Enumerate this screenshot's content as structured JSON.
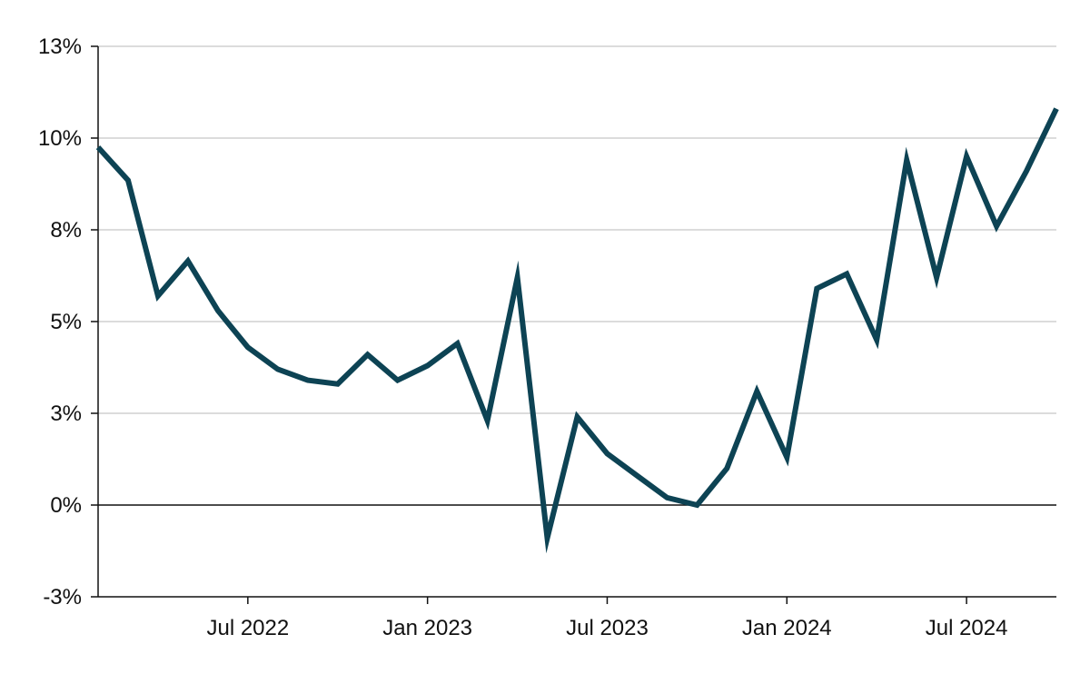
{
  "chart_data": {
    "type": "line",
    "title": "",
    "xlabel": "",
    "ylabel": "",
    "x": [
      "2022-02",
      "2022-03",
      "2022-04",
      "2022-05",
      "2022-06",
      "2022-07",
      "2022-08",
      "2022-09",
      "2022-10",
      "2022-11",
      "2022-12",
      "2023-01",
      "2023-02",
      "2023-03",
      "2023-04",
      "2023-05",
      "2023-06",
      "2023-07",
      "2023-08",
      "2023-09",
      "2023-10",
      "2023-11",
      "2023-12",
      "2024-01",
      "2024-02",
      "2024-03",
      "2024-04",
      "2024-05",
      "2024-06",
      "2024-07",
      "2024-08",
      "2024-09",
      "2024-10"
    ],
    "series": [
      {
        "values": [
          9.75,
          8.85,
          5.7,
          6.65,
          5.3,
          4.3,
          3.7,
          3.4,
          3.3,
          4.1,
          3.4,
          3.8,
          4.4,
          2.3,
          6.2,
          -0.9,
          2.4,
          1.4,
          0.8,
          0.2,
          0.0,
          1.0,
          3.1,
          1.3,
          5.9,
          6.3,
          4.5,
          9.4,
          6.2,
          9.5,
          7.6,
          9.1,
          10.8
        ],
        "color": "#0d4354"
      }
    ],
    "ylim": [
      -2.5,
      12.5
    ],
    "y_ticks": [
      {
        "value": 12.5,
        "label": "13%"
      },
      {
        "value": 10,
        "label": "10%"
      },
      {
        "value": 7.5,
        "label": "8%"
      },
      {
        "value": 5,
        "label": "5%"
      },
      {
        "value": 2.5,
        "label": "3%"
      },
      {
        "value": 0,
        "label": "0%"
      },
      {
        "value": -2.5,
        "label": "-3%"
      }
    ],
    "x_ticks": [
      {
        "at": "2022-07",
        "label": "Jul 2022"
      },
      {
        "at": "2023-01",
        "label": "Jan 2023"
      },
      {
        "at": "2023-07",
        "label": "Jul 2023"
      },
      {
        "at": "2024-01",
        "label": "Jan 2024"
      },
      {
        "at": "2024-07",
        "label": "Jul 2024"
      }
    ],
    "grid": "horizontal",
    "gridline_color": "#c8c8c8",
    "zero_line_color": "#111111",
    "axis_color": "#111111"
  }
}
